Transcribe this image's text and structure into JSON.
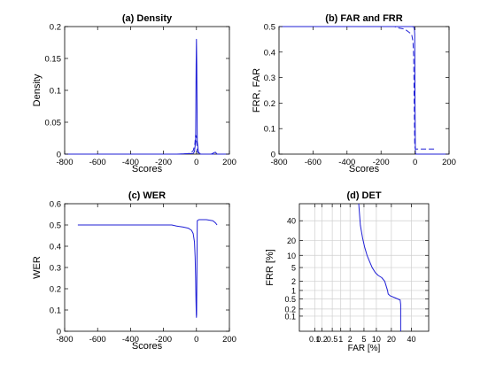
{
  "figure": {
    "background": "#ffffff",
    "line_color": "#1f1fd6"
  },
  "chart_data": [
    {
      "type": "line",
      "title": "(a) Density",
      "xlabel": "Scores",
      "ylabel": "Density",
      "xlim": [
        -800,
        200
      ],
      "ylim": [
        0,
        0.2
      ],
      "xticks": [
        -800,
        -600,
        -400,
        -200,
        0,
        200
      ],
      "xtick_labels": [
        "-800",
        "-600",
        "-400",
        "-200",
        "0",
        "200"
      ],
      "yticks": [
        0,
        0.05,
        0.1,
        0.15,
        0.2
      ],
      "ytick_labels": [
        "0",
        "0.05",
        "0.1",
        "0.15",
        "0.2"
      ],
      "series": [
        {
          "style": "solid",
          "x": [
            -800,
            -120,
            -20,
            -12,
            -5,
            -2,
            0,
            2,
            5,
            12,
            25,
            90,
            105,
            115,
            125,
            200
          ],
          "y": [
            0,
            0,
            0.001,
            0.004,
            0.02,
            0.14,
            0.18,
            0.14,
            0.02,
            0.003,
            0,
            0,
            0.002,
            0.003,
            0,
            0
          ]
        },
        {
          "style": "dashed",
          "x": [
            -800,
            -100,
            -40,
            -20,
            -10,
            -5,
            0,
            2,
            5,
            12,
            20,
            200
          ],
          "y": [
            0,
            0,
            0.001,
            0.005,
            0.015,
            0.03,
            0.028,
            0.018,
            0.005,
            0.001,
            0,
            0
          ]
        }
      ]
    },
    {
      "type": "line",
      "title": "(b) FAR and FRR",
      "xlabel": "Scores",
      "ylabel": "FRR, FAR",
      "xlim": [
        -800,
        200
      ],
      "ylim": [
        0,
        0.5
      ],
      "xticks": [
        -800,
        -600,
        -400,
        -200,
        0,
        200
      ],
      "xtick_labels": [
        "-800",
        "-600",
        "-400",
        "-200",
        "0",
        "200"
      ],
      "yticks": [
        0,
        0.1,
        0.2,
        0.3,
        0.4,
        0.5
      ],
      "ytick_labels": [
        "0",
        "0.1",
        "0.2",
        "0.3",
        "0.4",
        "0.5"
      ],
      "series": [
        {
          "style": "solid",
          "x": [
            -800,
            -20,
            -8,
            -4,
            -2,
            0,
            2,
            5,
            200
          ],
          "y": [
            0.5,
            0.5,
            0.499,
            0.49,
            0.47,
            0.2,
            0.005,
            0,
            0
          ]
        },
        {
          "style": "dashed",
          "x": [
            -800,
            -120,
            -100,
            -60,
            -40,
            -20,
            -12,
            -8,
            -5,
            -2,
            0,
            2,
            5,
            15,
            60,
            120
          ],
          "y": [
            0.5,
            0.5,
            0.495,
            0.49,
            0.48,
            0.47,
            0.44,
            0.38,
            0.2,
            0.04,
            0.025,
            0.02,
            0.02,
            0.02,
            0.02,
            0.02
          ]
        }
      ]
    },
    {
      "type": "line",
      "title": "(c) WER",
      "xlabel": "Scores",
      "ylabel": "WER",
      "xlim": [
        -800,
        200
      ],
      "ylim": [
        0,
        0.6
      ],
      "xticks": [
        -800,
        -600,
        -400,
        -200,
        0,
        200
      ],
      "xtick_labels": [
        "-800",
        "-600",
        "-400",
        "-200",
        "0",
        "200"
      ],
      "yticks": [
        0,
        0.1,
        0.2,
        0.3,
        0.4,
        0.5,
        0.6
      ],
      "ytick_labels": [
        "0",
        "0.1",
        "0.2",
        "0.3",
        "0.4",
        "0.5",
        "0.6"
      ],
      "series": [
        {
          "style": "solid",
          "x": [
            -720,
            -150,
            -120,
            -80,
            -50,
            -30,
            -20,
            -12,
            -8,
            -5,
            -3,
            -1,
            0,
            1,
            3,
            5,
            15,
            60,
            100,
            115,
            125
          ],
          "y": [
            0.5,
            0.5,
            0.495,
            0.49,
            0.485,
            0.475,
            0.46,
            0.42,
            0.35,
            0.25,
            0.15,
            0.08,
            0.065,
            0.08,
            0.3,
            0.52,
            0.525,
            0.525,
            0.52,
            0.51,
            0.5
          ]
        }
      ]
    },
    {
      "type": "line",
      "title": "(d) DET",
      "xlabel": "FAR [%]",
      "ylabel": "FRR [%]",
      "scale": "normal-deviate",
      "xlim": [
        0.02,
        60
      ],
      "ylim": [
        0.02,
        60
      ],
      "xticks": [
        0.1,
        0.2,
        0.5,
        1,
        2,
        5,
        10,
        20,
        40
      ],
      "xtick_labels": [
        "0.1",
        "0.2",
        "0.5",
        "1",
        "2",
        "5",
        "10",
        "20",
        "40"
      ],
      "yticks": [
        0.1,
        0.2,
        0.5,
        1,
        2,
        5,
        10,
        20,
        40
      ],
      "ytick_labels": [
        "0.1",
        "0.2",
        "0.5",
        "1",
        "2",
        "5",
        "10",
        "20",
        "40"
      ],
      "grid": true,
      "series": [
        {
          "style": "solid",
          "x": [
            3.6,
            4,
            4.6,
            5.2,
            6,
            7,
            8,
            9.5,
            11,
            13,
            15,
            17,
            17.5,
            19,
            23,
            28,
            28.5,
            28.5
          ],
          "y": [
            60,
            35,
            22,
            15,
            10,
            7,
            5,
            3.6,
            3,
            2.6,
            2,
            1,
            0.75,
            0.65,
            0.55,
            0.45,
            0.3,
            0.02
          ]
        }
      ]
    }
  ]
}
